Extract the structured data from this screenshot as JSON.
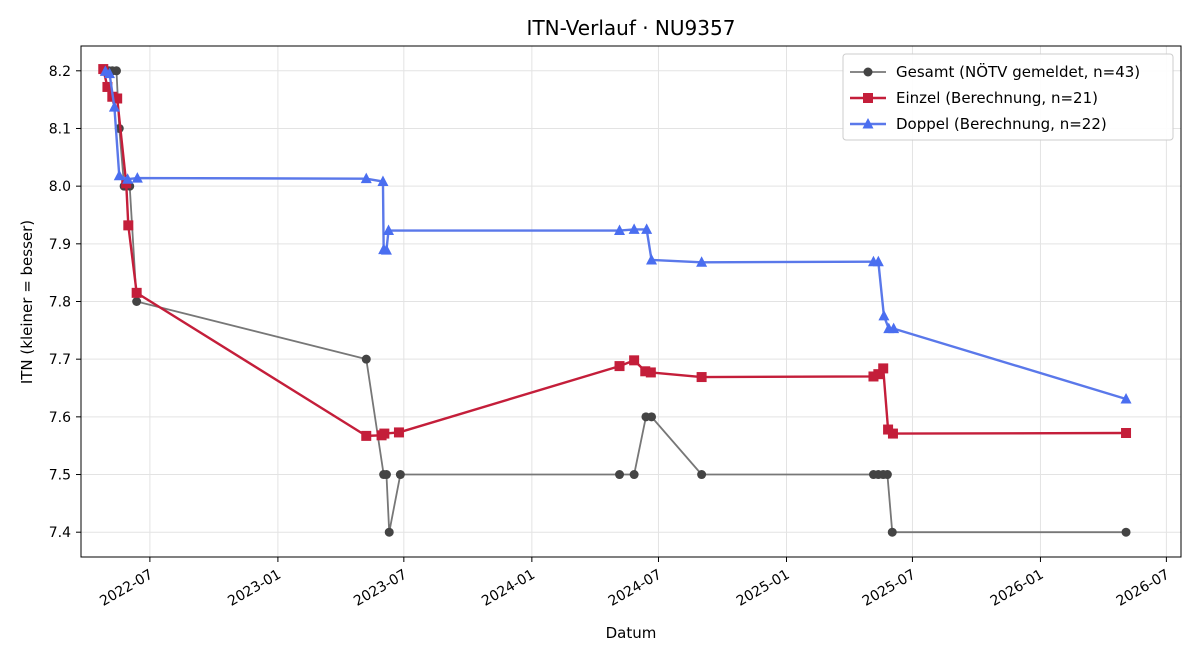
{
  "chart_data": {
    "type": "line",
    "title": "ITN-Verlauf · NU9357",
    "xlabel": "Datum",
    "ylabel": "ITN  (kleiner = besser)",
    "xlim": [
      "2022-03-24",
      "2026-07-22"
    ],
    "ylim": [
      7.357,
      8.243
    ],
    "x_ticks": [
      "2022-07-01",
      "2023-01-01",
      "2023-07-01",
      "2024-01-01",
      "2024-07-01",
      "2025-01-01",
      "2025-07-01",
      "2026-01-01",
      "2026-07-01"
    ],
    "x_tick_labels": [
      "2022-07",
      "2023-01",
      "2023-07",
      "2024-01",
      "2024-07",
      "2025-01",
      "2025-07",
      "2026-01",
      "2026-07"
    ],
    "y_ticks": [
      7.4,
      7.5,
      7.6,
      7.7,
      7.8,
      7.9,
      8.0,
      8.1,
      8.2
    ],
    "y_tick_labels": [
      "7.4",
      "7.5",
      "7.6",
      "7.7",
      "7.8",
      "7.9",
      "8.0",
      "8.1",
      "8.2"
    ],
    "grid": true,
    "legend_position": "top-right",
    "series": [
      {
        "name": "Gesamt (NÖTV gemeldet, n=43)",
        "color": "#444444",
        "line_color": "#777777",
        "marker": "circle",
        "points": [
          [
            "2022-04-25",
            8.2
          ],
          [
            "2022-04-28",
            8.2
          ],
          [
            "2022-05-03",
            8.2
          ],
          [
            "2022-05-08",
            8.2
          ],
          [
            "2022-05-14",
            8.2
          ],
          [
            "2022-05-18",
            8.1
          ],
          [
            "2022-05-25",
            8.0
          ],
          [
            "2022-06-02",
            8.0
          ],
          [
            "2022-06-12",
            7.8
          ],
          [
            "2023-05-08",
            7.7
          ],
          [
            "2023-06-02",
            7.5
          ],
          [
            "2023-06-06",
            7.5
          ],
          [
            "2023-06-10",
            7.4
          ],
          [
            "2023-06-26",
            7.5
          ],
          [
            "2024-05-06",
            7.5
          ],
          [
            "2024-05-27",
            7.5
          ],
          [
            "2024-06-13",
            7.6
          ],
          [
            "2024-06-21",
            7.6
          ],
          [
            "2024-09-01",
            7.5
          ],
          [
            "2025-05-06",
            7.5
          ],
          [
            "2025-05-13",
            7.5
          ],
          [
            "2025-05-20",
            7.5
          ],
          [
            "2025-05-26",
            7.5
          ],
          [
            "2025-06-02",
            7.4
          ],
          [
            "2026-05-04",
            7.4
          ]
        ]
      },
      {
        "name": "Einzel (Berechnung, n=21)",
        "color": "#c41e3a",
        "line_color": "#c41e3a",
        "marker": "square",
        "points": [
          [
            "2022-04-25",
            8.203
          ],
          [
            "2022-05-01",
            8.172
          ],
          [
            "2022-05-08",
            8.155
          ],
          [
            "2022-05-15",
            8.152
          ],
          [
            "2022-05-28",
            8.005
          ],
          [
            "2022-05-31",
            7.932
          ],
          [
            "2022-06-12",
            7.815
          ],
          [
            "2023-05-08",
            7.567
          ],
          [
            "2023-05-30",
            7.568
          ],
          [
            "2023-06-03",
            7.571
          ],
          [
            "2023-06-24",
            7.573
          ],
          [
            "2024-05-06",
            7.688
          ],
          [
            "2024-05-27",
            7.698
          ],
          [
            "2024-06-12",
            7.679
          ],
          [
            "2024-06-20",
            7.677
          ],
          [
            "2024-09-01",
            7.669
          ],
          [
            "2025-05-06",
            7.67
          ],
          [
            "2025-05-13",
            7.674
          ],
          [
            "2025-05-20",
            7.684
          ],
          [
            "2025-05-27",
            7.578
          ],
          [
            "2025-06-03",
            7.571
          ],
          [
            "2026-05-04",
            7.572
          ]
        ]
      },
      {
        "name": "Doppel (Berechnung, n=22)",
        "color": "#4a6ef0",
        "line_color": "#5a78ea",
        "marker": "triangle",
        "points": [
          [
            "2022-04-28",
            8.199
          ],
          [
            "2022-05-04",
            8.195
          ],
          [
            "2022-05-11",
            8.137
          ],
          [
            "2022-05-18",
            8.018
          ],
          [
            "2022-05-30",
            8.012
          ],
          [
            "2022-06-13",
            8.014
          ],
          [
            "2023-05-08",
            8.013
          ],
          [
            "2023-06-01",
            8.008
          ],
          [
            "2023-06-02",
            7.89
          ],
          [
            "2023-06-06",
            7.889
          ],
          [
            "2023-06-09",
            7.923
          ],
          [
            "2024-05-06",
            7.923
          ],
          [
            "2024-05-27",
            7.925
          ],
          [
            "2024-06-14",
            7.925
          ],
          [
            "2024-06-21",
            7.872
          ],
          [
            "2024-09-01",
            7.868
          ],
          [
            "2025-05-06",
            7.869
          ],
          [
            "2025-05-13",
            7.869
          ],
          [
            "2025-05-21",
            7.775
          ],
          [
            "2025-05-28",
            7.753
          ],
          [
            "2025-06-04",
            7.753
          ],
          [
            "2026-05-04",
            7.631
          ]
        ]
      }
    ]
  }
}
